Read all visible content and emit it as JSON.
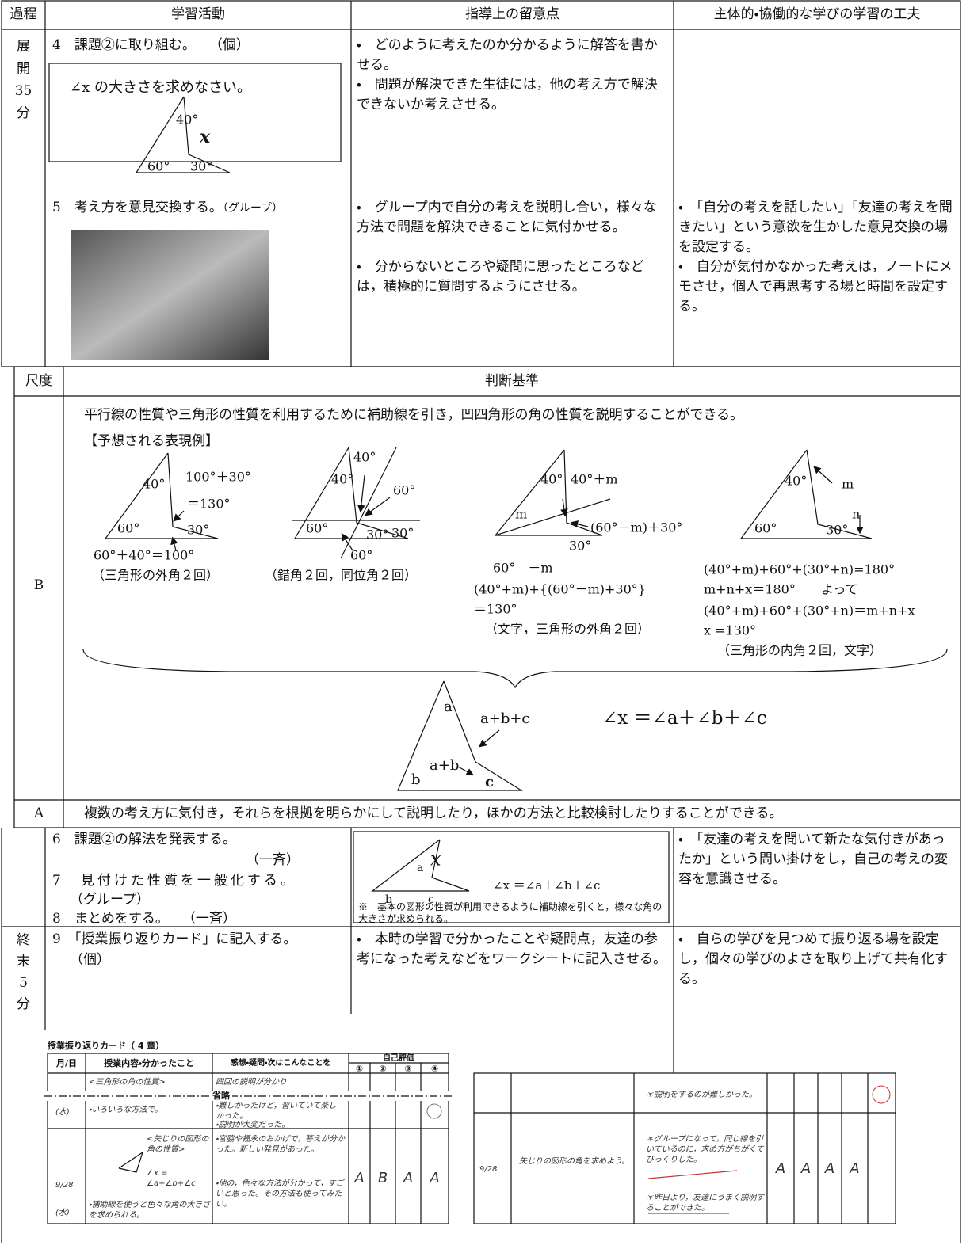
{
  "header": [
    "過程",
    "学習活動",
    "指導上の留意点",
    "主体的・協働的な学びの学習の工夫"
  ],
  "development": {
    "phase": [
      "展",
      "開",
      "35",
      "分"
    ],
    "step4": "4　課題②に取り組む。　　（個）",
    "problem": "∠x の大きさを求めなさい。",
    "problem_figure": [
      "40°",
      "x",
      "60°",
      "30°"
    ],
    "step5": "5　考え方を意見交換する。",
    "step5_mode": "（グループ）",
    "notes4": [
      "・　どのように考えたのか分かるように解答を書かせる。",
      "・　問題が解決できた生徒には，他の考え方で解決できないか考えさせる。"
    ],
    "notes5": [
      "・　グループ内で自分の考えを説明し合い，様々な方法で問題を解決できることに気付かせる。",
      "・　分からないところや疑問に思ったところなどは，積極的に質問するようにさせる。"
    ],
    "ideas5": [
      "・　「自分の考えを話したい」「友達の考えを聞きたい」という意欲を生かした意見交換の場を設定する。",
      "・　自分が気付かなかった考えは，ノートにメモさせ，個人で再思考する場と時間を設定する。"
    ]
  },
  "criteria": {
    "header": [
      "尺度",
      "判断基準"
    ],
    "B": {
      "level": "B",
      "text": "平行線の性質や三角形の性質を利用するために補助線を引き，凹四角形の角の性質を説明することができる。",
      "examples_title": "【予想される表現例】",
      "examples": [
        {
          "labels": [
            "40°",
            "100°＋30°",
            "＝130°",
            "60°",
            "30°"
          ],
          "captions": [
            "60°＋40°＝100°",
            "（三角形の外角２回）"
          ]
        },
        {
          "labels": [
            "40°",
            "40°",
            "60°",
            "30°",
            "30°",
            "60°",
            "60°"
          ],
          "captions": [
            "（錯角２回，同位角２回）"
          ]
        },
        {
          "labels": [
            "40°",
            "40°＋m",
            "m",
            "(60°－m)＋30°",
            "30°",
            "60°　－m"
          ],
          "captions": [
            "(40°+m)+{(60°－m)+30°}",
            "＝130°",
            "（文字，三角形の外角２回）"
          ]
        },
        {
          "labels": [
            "40°",
            "m",
            "n",
            "60°",
            "30°"
          ],
          "captions": [
            "(40°+m)+60°+(30°+n)=180°",
            "m+n+x＝180°　　よって",
            "(40°+m)+60°+(30°+n)＝m+n+x",
            "x =130°",
            "（三角形の内角２回，文字）"
          ]
        }
      ],
      "summary_figure": [
        "a",
        "a+b+c",
        "a+b",
        "b",
        "c"
      ],
      "formula": "∠x ＝∠a＋∠b＋∠c"
    },
    "A": {
      "level": "A",
      "text": "複数の考え方に気付き，それらを根拠を明らかにして説明したり，ほかの方法と比較検討したりすることができる。"
    }
  },
  "sharing": {
    "steps": [
      "6　課題②の解法を発表する。",
      "（一斉）",
      "7　見付けた性質を一般化する。",
      "（グループ）",
      "8　まとめをする。　　（一斉）"
    ],
    "figure": [
      "a",
      "x",
      "b",
      "c"
    ],
    "formula": "∠x ＝∠a＋∠b＋∠c",
    "note": "※　基本の図形の性質が利用できるように補助線を引くと，様々な角の大きさが求められる。",
    "idea": "・　「友達の考えを聞いて新たな気付きがあったか」という問い掛けをし，自己の考えの変容を意識させる。"
  },
  "closing": {
    "phase": [
      "終",
      "末",
      "5",
      "分"
    ],
    "step": "9　「授業振り返りカード」に記入する。",
    "mode": "（個）",
    "note": "・　本時の学習で分かったことや疑問点，友達の参考になった考えなどをワークシートに記入させる。",
    "idea": "・　自らの学びを見つめて振り返る場を設定し，個々の学びのよさを取り上げて共有化する。",
    "card_left": {
      "title": "授業振り返りカード（ 4 章）",
      "headers": [
        "月/日",
        "授業内容・分かったこと",
        "感想・疑問・次はこんなことを",
        "自己評価"
      ],
      "nums": [
        "①",
        "②",
        "③",
        "④"
      ],
      "omitted": "省略",
      "prev_row": [
        "<三角形の角の性質>",
        "四回の説明が分かり",
        "(水)",
        "・いろいろな方法で。",
        "・難しかったけど，習いていて楽しかった。",
        "・説明が大変だった。"
      ],
      "date": [
        "9/28",
        "(水)"
      ],
      "content": [
        "<矢じりの図形の角の性質>",
        "∠x = ∠a+∠b+∠c",
        "・補助線を使うと色々な角の大きさを求められる。"
      ],
      "comments": [
        "・宮脇や福永のおかげで，答えが分かった。新しい発見があった。",
        "・他の，色々な方法が分かって，すごいと思った。その方法も使ってみたい。"
      ],
      "grades": [
        "A",
        "B",
        "A",
        "A"
      ]
    },
    "card_right": {
      "prev_comment": "＊説明をするのが難しかった。",
      "date": "9/28",
      "content": "矢じりの図形の角を求めよう。",
      "comments": [
        "＊グループになって，同じ線を引いているのに，求め方がちがくてびっくりした。",
        "＊昨日より，友達にうまく説明することができた。"
      ],
      "grades": [
        "A",
        "A",
        "A",
        "A"
      ]
    }
  }
}
